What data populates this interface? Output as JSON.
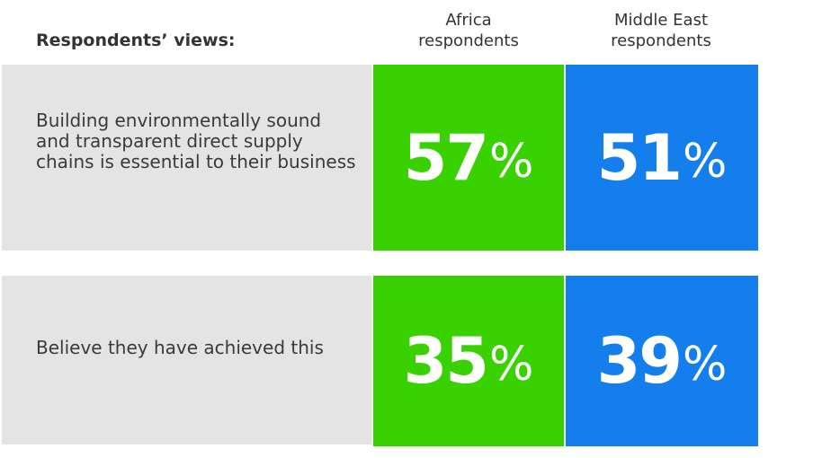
{
  "header": {
    "label": "Respondents’ views:"
  },
  "columns": [
    {
      "line1": "Africa",
      "line2": "respondents",
      "color": "#39d100"
    },
    {
      "line1": "Middle East",
      "line2": "respondents",
      "color": "#137eec"
    }
  ],
  "rows": [
    {
      "text": "Building environmentally sound and transparent direct supply chains is essential to their business",
      "values": [
        {
          "num": "57",
          "unit": "%"
        },
        {
          "num": "51",
          "unit": "%"
        }
      ]
    },
    {
      "text": "Believe they have achieved this",
      "values": [
        {
          "num": "35",
          "unit": "%"
        },
        {
          "num": "39",
          "unit": "%"
        }
      ]
    }
  ],
  "chart_data": {
    "type": "table",
    "categories": [
      "Building environmentally sound and transparent direct supply chains is essential to their business",
      "Believe they have achieved this"
    ],
    "series": [
      {
        "name": "Africa respondents",
        "values": [
          57,
          35
        ]
      },
      {
        "name": "Middle East respondents",
        "values": [
          51,
          39
        ]
      }
    ],
    "title": "",
    "unit": "%"
  }
}
